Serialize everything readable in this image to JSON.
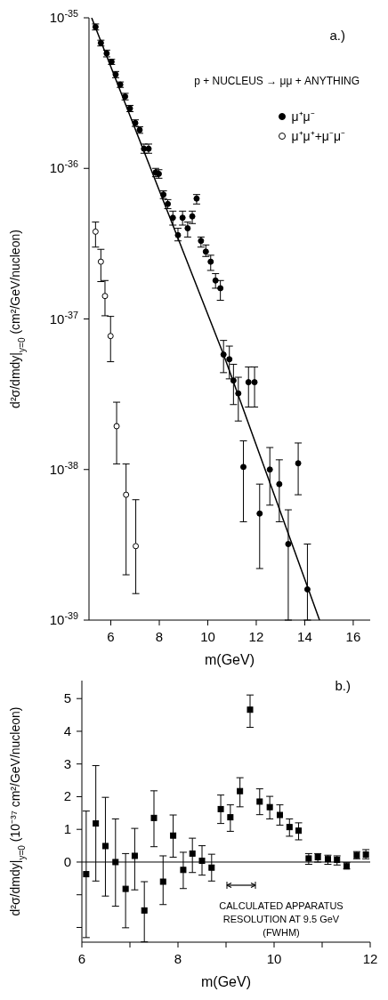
{
  "chart_data": [
    {
      "type": "scatter",
      "log": "y",
      "legend": "top right",
      "xlabel": "m(GeV)",
      "ylabel": "d²σ/dmdy|$_{y=0}$ (cm²/GeV/nucleon)",
      "annotations": [
        "a.)",
        "p + NUCLEUS → μμ + ANYTHING"
      ],
      "xlim": [
        5.1,
        16.7
      ],
      "xticks": [
        6,
        8,
        10,
        12,
        14,
        16
      ],
      "ylim": [
        1e-39,
        1e-35
      ],
      "yticks": [
        {
          "value": 1e-39,
          "label": "10$^{-39}$"
        },
        {
          "value": 1e-38,
          "label": "10$^{-38}$"
        },
        {
          "value": 1e-37,
          "label": "10$^{-37}$"
        },
        {
          "value": 1e-36,
          "label": "10$^{-36}$"
        },
        {
          "value": 1e-35,
          "label": "10$^{-35}$"
        }
      ],
      "series": [
        {
          "name": "μ⁺μ⁻",
          "color": "#000000",
          "marker": "circle",
          "x": [
            5.37,
            5.59,
            5.83,
            6.03,
            6.2,
            6.39,
            6.59,
            6.79,
            7.01,
            7.19,
            7.37,
            7.56,
            7.85,
            7.98,
            8.17,
            8.35,
            8.56,
            8.77,
            8.96,
            9.17,
            9.36,
            9.54,
            9.72,
            9.92,
            10.12,
            10.32,
            10.52,
            10.65,
            10.89,
            11.06,
            11.26,
            11.47,
            11.68,
            11.93,
            12.14,
            12.56,
            12.95,
            13.32,
            13.73,
            14.11
          ],
          "values": [
            8.7e-36,
            6.8e-36,
            5.8e-36,
            5.1e-36,
            4.2e-36,
            3.6e-36,
            3e-36,
            2.5e-36,
            2e-36,
            1.8e-36,
            1.35e-36,
            1.35e-36,
            9.4e-37,
            9.2e-37,
            6.7e-37,
            5.8e-37,
            4.7e-37,
            3.6e-37,
            4.7e-37,
            4e-37,
            4.8e-37,
            6.3e-37,
            3.3e-37,
            2.8e-37,
            2.4e-37,
            1.8e-37,
            1.6e-37,
            5.8e-38,
            5.4e-38,
            3.9e-38,
            3.2e-38,
            1.04e-38,
            3.8e-38,
            3.8e-38,
            5.1e-39,
            1e-38,
            8e-39,
            3.2e-39,
            1.1e-38,
            1.6e-39
          ],
          "errors": [
            [
              8.3e-36,
              9.1e-36
            ],
            [
              6.5e-36,
              7.1e-36
            ],
            [
              5.5e-36,
              6.1e-36
            ],
            [
              4.9e-36,
              5.3e-36
            ],
            [
              4e-36,
              4.4e-36
            ],
            [
              3.45e-36,
              3.75e-36
            ],
            [
              2.85e-36,
              3.15e-36
            ],
            [
              2.38e-36,
              2.62e-36
            ],
            [
              1.9e-36,
              2.1e-36
            ],
            [
              1.71e-36,
              1.89e-36
            ],
            [
              1.26e-36,
              1.45e-36
            ],
            [
              1.26e-36,
              1.45e-36
            ],
            [
              8.8e-37,
              1e-36
            ],
            [
              8.6e-37,
              9.8e-37
            ],
            [
              6.3e-37,
              7.1e-37
            ],
            [
              5.4e-37,
              6.2e-37
            ],
            [
              4.2e-37,
              5.2e-37
            ],
            [
              3.3e-37,
              4e-37
            ],
            [
              4.2e-37,
              5.2e-37
            ],
            [
              3.5e-37,
              4.4e-37
            ],
            [
              4.3e-37,
              5.2e-37
            ],
            [
              5.8e-37,
              6.7e-37
            ],
            [
              3e-37,
              3.5e-37
            ],
            [
              2.6e-37,
              3.1e-37
            ],
            [
              2.1e-37,
              2.65e-37
            ],
            [
              1.6e-37,
              2e-37
            ],
            [
              1.33e-37,
              1.8e-37
            ],
            [
              4.4e-38,
              7.2e-38
            ],
            [
              4e-38,
              6.6e-38
            ],
            [
              2.7e-38,
              5e-38
            ],
            [
              2.1e-38,
              4.1e-38
            ],
            [
              4.5e-39,
              1.55e-38
            ],
            [
              2.6e-38,
              4.8e-38
            ],
            [
              2.6e-38,
              4.8e-38
            ],
            [
              2.2e-39,
              8e-39
            ],
            [
              5.8e-39,
              1.4e-38
            ],
            [
              4.5e-39,
              1.16e-38
            ],
            [
              1e-39,
              5.4e-39
            ],
            [
              6.8e-39,
              1.5e-38
            ],
            [
              1e-39,
              3.2e-39
            ]
          ]
        },
        {
          "name": "μ⁺μ⁺+μ⁻μ⁻",
          "color": "#ffffff",
          "marker": "circle",
          "x": [
            5.37,
            5.59,
            5.76,
            5.99,
            6.24,
            6.63,
            7.03
          ],
          "values": [
            3.8e-37,
            2.4e-37,
            1.42e-37,
            7.7e-38,
            1.94e-38,
            6.8e-39,
            3.1e-39
          ],
          "errors": [
            [
              3e-37,
              4.4e-37
            ],
            [
              1.77e-37,
              2.9e-37
            ],
            [
              1.05e-37,
              1.8e-37
            ],
            [
              5.2e-38,
              1.04e-37
            ],
            [
              1.09e-38,
              2.8e-38
            ],
            [
              2e-39,
              1.09e-38
            ],
            [
              1.5e-39,
              6.3e-39
            ]
          ]
        },
        {
          "type": "line",
          "color": "#000000",
          "marker": "none",
          "x": [
            5.21,
            10.65,
            14.61
          ],
          "values": [
            1e-35,
            5.8e-38,
            1e-39
          ]
        }
      ]
    },
    {
      "type": "scatter",
      "xlabel": "m(GeV)",
      "ylabel": "d²σ/dmdy|$_{y=0}$ (10⁻³⁷ cm²/GeV/nucleon)",
      "annotations": [
        "b.)",
        "CALCULATED APPARATUS RESOLUTION AT 9.5 GeV (FWHM)"
      ],
      "xlim": [
        6,
        12
      ],
      "xticks": [
        6,
        {
          "value": 7,
          "label": null
        },
        8,
        {
          "value": 9,
          "label": null
        },
        10,
        {
          "value": 11,
          "label": null
        },
        12
      ],
      "ylim": [
        -2.45,
        5.55
      ],
      "yticks": [
        {
          "value": -2,
          "label": null
        },
        {
          "value": -1,
          "label": null
        },
        0,
        1,
        2,
        3,
        4,
        5
      ],
      "ref_lines": [
        {
          "axis": "y",
          "value": 0,
          "color": "#000000"
        }
      ],
      "series": [
        {
          "color": "#000000",
          "marker": "square",
          "x": [
            6.09,
            6.29,
            6.49,
            6.7,
            6.91,
            7.1,
            7.3,
            7.5,
            7.69,
            7.9,
            8.11,
            8.3,
            8.5,
            8.7,
            8.89,
            9.09,
            9.29,
            9.5,
            9.7,
            9.91,
            10.12,
            10.32,
            10.51,
            10.72,
            10.91,
            11.12,
            11.31,
            11.51,
            11.72,
            11.91
          ],
          "values": [
            -0.37,
            1.18,
            0.49,
            0,
            -0.82,
            0.19,
            -1.48,
            1.35,
            -0.6,
            0.81,
            -0.24,
            0.26,
            0.04,
            -0.17,
            1.62,
            1.37,
            2.17,
            4.66,
            1.85,
            1.68,
            1.44,
            1.07,
            0.96,
            0.11,
            0.15,
            0.09,
            0.07,
            -0.13,
            0.21,
            0.23
          ],
          "errors": [
            [
              -2.31,
              1.56
            ],
            [
              -0.58,
              2.95
            ],
            [
              -1.04,
              1.98
            ],
            [
              -1.35,
              1.32
            ],
            [
              -2.01,
              0.26
            ],
            [
              -0.85,
              1.03
            ],
            [
              -2.44,
              -0.6
            ],
            [
              0.47,
              2.18
            ],
            [
              -1.3,
              0.19
            ],
            [
              0.15,
              1.44
            ],
            [
              -0.81,
              0.3
            ],
            [
              -0.32,
              0.73
            ],
            [
              -0.4,
              0.5
            ],
            [
              -0.58,
              0.24
            ],
            [
              1.18,
              2.05
            ],
            [
              0.94,
              1.75
            ],
            [
              1.69,
              2.58
            ],
            [
              4.12,
              5.11
            ],
            [
              1.45,
              2.24
            ],
            [
              1.32,
              2.01
            ],
            [
              1.13,
              1.75
            ],
            [
              0.79,
              1.32
            ],
            [
              0.68,
              1.2
            ],
            [
              -0.07,
              0.26
            ],
            [
              0,
              0.26
            ],
            [
              -0.07,
              0.21
            ],
            [
              -0.09,
              0.19
            ],
            [
              -0.21,
              -0.02
            ],
            [
              0.1,
              0.32
            ],
            [
              0.1,
              0.38
            ]
          ]
        }
      ]
    }
  ]
}
